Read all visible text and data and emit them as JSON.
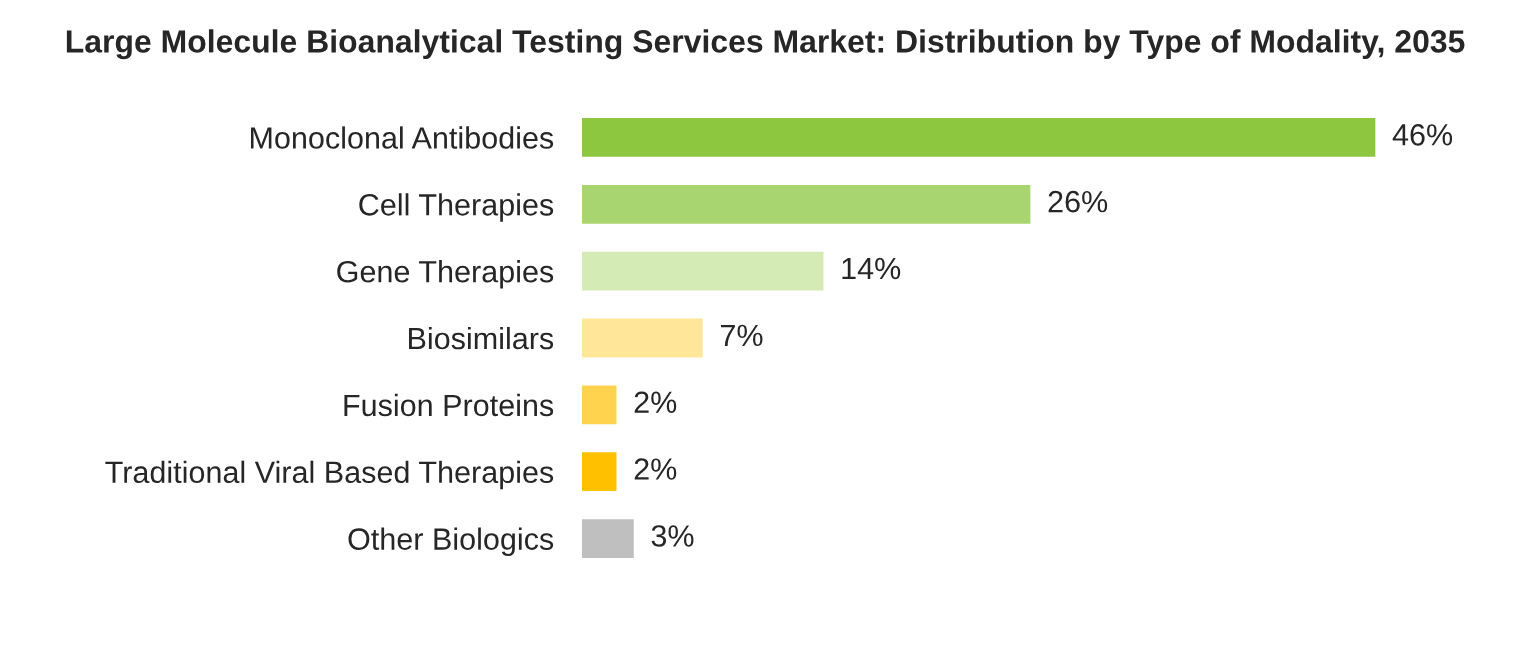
{
  "chart_data": {
    "type": "bar",
    "orientation": "horizontal",
    "title": "Large Molecule Bioanalytical Testing Services Market: Distribution by Type of Modality, 2035",
    "categories": [
      "Monoclonal Antibodies",
      "Cell Therapies",
      "Gene Therapies",
      "Biosimilars",
      "Fusion Proteins",
      "Traditional Viral Based Therapies",
      "Other Biologics"
    ],
    "values": [
      46,
      26,
      14,
      7,
      2,
      2,
      3
    ],
    "colors": [
      "#8dc63f",
      "#a9d570",
      "#d5ebb6",
      "#ffe699",
      "#ffd34d",
      "#ffc000",
      "#bfbfbf"
    ],
    "value_labels": [
      "46%",
      "26%",
      "14%",
      "7%",
      "2%",
      "2%",
      "3%"
    ],
    "grid": false,
    "legend": false
  }
}
